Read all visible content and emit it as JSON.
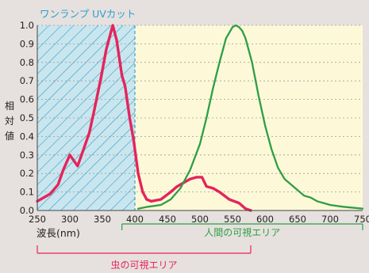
{
  "chart_data": {
    "type": "line",
    "title": "",
    "hatched_band_label": "ワンランプ UVカット",
    "hatched_band_range": [
      250,
      400
    ],
    "xlabel": "波長(nm)",
    "ylabel": "相対値",
    "xlim": [
      250,
      750
    ],
    "ylim": [
      0.0,
      1.0
    ],
    "x_ticks": [
      "250",
      "300",
      "350",
      "400",
      "450",
      "500",
      "550",
      "600",
      "650",
      "700",
      "750"
    ],
    "y_ticks": [
      "0.0",
      "0.1",
      "0.2",
      "0.3",
      "0.4",
      "0.5",
      "0.6",
      "0.7",
      "0.8",
      "0.9",
      "1.0"
    ],
    "grid": "horizontal dashed",
    "colors": {
      "background": "#e6e1de",
      "plot_area": "#fdf9d8",
      "hatch_fill": "#c9e6ef",
      "hatch_line": "#3ea0cb",
      "insect_curve": "#e5245b",
      "human_curve": "#2e9e46",
      "band_label": "#2e9fd3"
    },
    "series": [
      {
        "color": "#e5245b",
        "x": [
          250,
          260,
          270,
          282,
          290,
          300,
          306,
          312,
          318,
          330,
          338,
          348,
          356,
          366,
          372,
          380,
          385,
          392,
          398,
          405,
          412,
          418,
          425,
          440,
          455,
          465,
          475,
          485,
          495,
          503,
          510,
          520,
          530,
          545,
          560,
          570,
          578
        ],
        "y": [
          0.05,
          0.07,
          0.09,
          0.14,
          0.22,
          0.3,
          0.27,
          0.24,
          0.3,
          0.42,
          0.55,
          0.72,
          0.87,
          1.0,
          0.92,
          0.73,
          0.67,
          0.5,
          0.38,
          0.2,
          0.1,
          0.06,
          0.05,
          0.06,
          0.1,
          0.13,
          0.15,
          0.17,
          0.18,
          0.18,
          0.13,
          0.12,
          0.1,
          0.06,
          0.04,
          0.01,
          0.0
        ]
      },
      {
        "color": "#2e9e46",
        "x": [
          405,
          420,
          440,
          455,
          470,
          485,
          500,
          510,
          520,
          530,
          540,
          550,
          555,
          560,
          565,
          570,
          580,
          590,
          600,
          610,
          620,
          630,
          640,
          650,
          660,
          670,
          680,
          690,
          700,
          720,
          750
        ],
        "y": [
          0.01,
          0.02,
          0.03,
          0.06,
          0.12,
          0.22,
          0.36,
          0.5,
          0.66,
          0.8,
          0.93,
          0.99,
          1.0,
          0.99,
          0.97,
          0.93,
          0.8,
          0.62,
          0.46,
          0.33,
          0.23,
          0.17,
          0.14,
          0.11,
          0.08,
          0.07,
          0.05,
          0.04,
          0.03,
          0.02,
          0.01
        ]
      }
    ],
    "range_annotations": [
      {
        "label": "人間の可視エリア",
        "color": "#2e9e46",
        "from": 380,
        "to": 750
      },
      {
        "label": "虫の可視エリア",
        "color": "#e5245b",
        "from": 250,
        "to": 578
      }
    ]
  }
}
